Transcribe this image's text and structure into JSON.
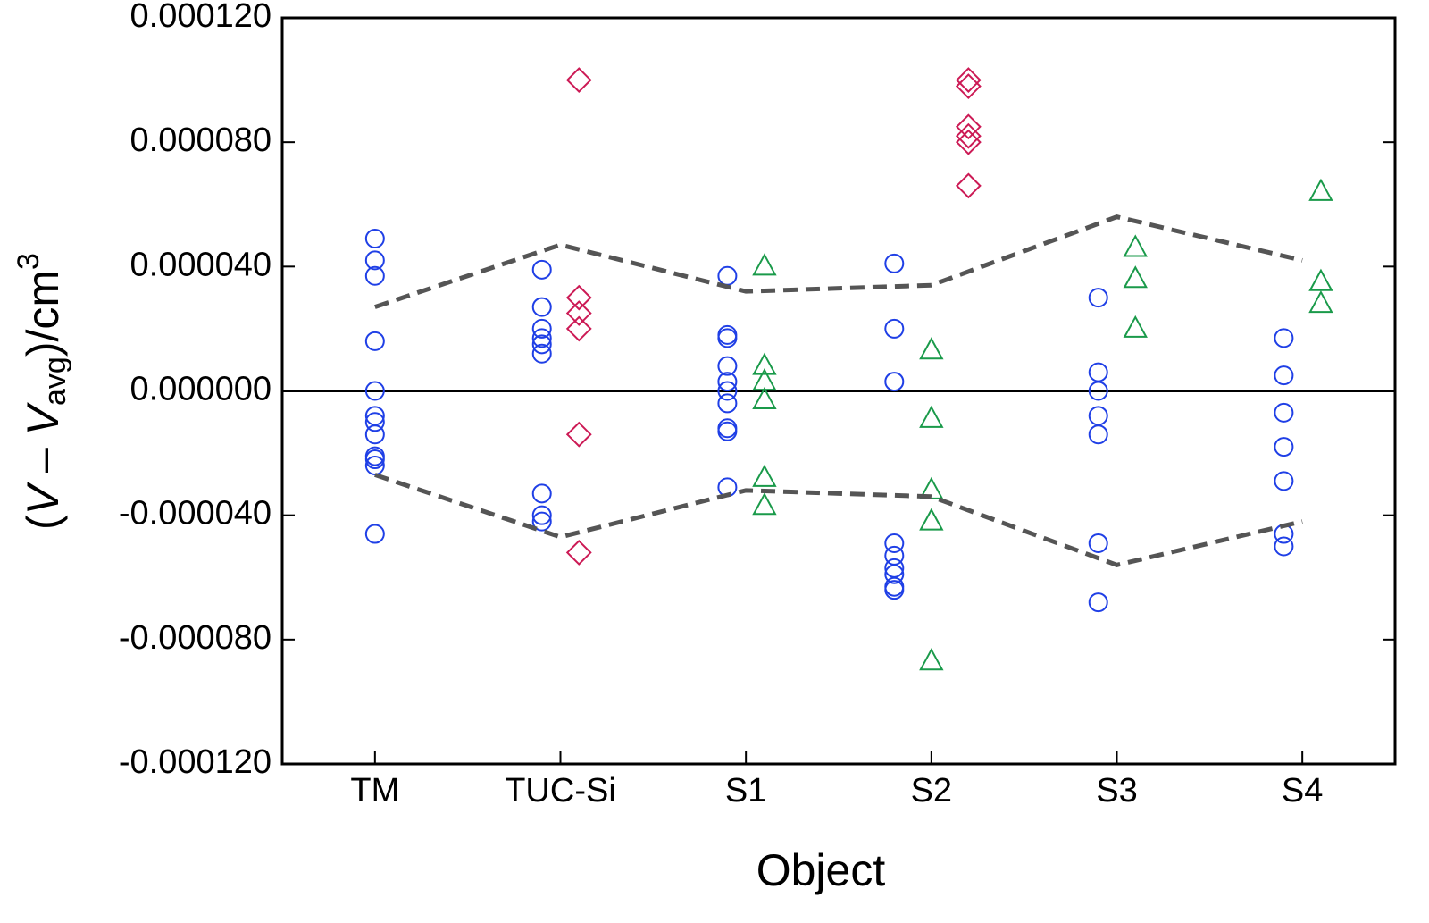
{
  "chart_data": {
    "type": "scatter",
    "x_label": "Object",
    "y_label": [
      "(",
      "V",
      " – ",
      "V",
      "avg",
      ")/cm",
      "3"
    ],
    "xlim": [
      -0.5,
      5.5
    ],
    "xticks": [
      {
        "value": 0,
        "label": "TM"
      },
      {
        "value": 1,
        "label": "TUC-Si"
      },
      {
        "value": 2,
        "label": "S1"
      },
      {
        "value": 3,
        "label": "S2"
      },
      {
        "value": 4,
        "label": "S3"
      },
      {
        "value": 5,
        "label": "S4"
      }
    ],
    "ylim": [
      -0.00012,
      0.00012
    ],
    "yticks": [
      {
        "value": -0.00012,
        "label": "-0.000120"
      },
      {
        "value": -8e-05,
        "label": "-0.000080"
      },
      {
        "value": -4e-05,
        "label": "-0.000040"
      },
      {
        "value": 0,
        "label": "0.000000"
      },
      {
        "value": 4e-05,
        "label": "0.000040"
      },
      {
        "value": 8e-05,
        "label": "0.000080"
      },
      {
        "value": 0.00012,
        "label": "0.000120"
      }
    ],
    "hline": 0,
    "series": [
      {
        "color": "#1f3fe6",
        "marker": "circle",
        "x": [
          0,
          0,
          0,
          0,
          0,
          0,
          0,
          0,
          0,
          0,
          0,
          0,
          0.9,
          0.9,
          0.9,
          0.9,
          0.9,
          0.9,
          0.9,
          0.9,
          0.9,
          1.9,
          1.9,
          1.9,
          1.9,
          1.9,
          1.9,
          1.9,
          1.9,
          1.9,
          1.9,
          2.8,
          2.8,
          2.8,
          2.8,
          2.8,
          2.8,
          2.8,
          2.8,
          2.8,
          3.9,
          3.9,
          3.9,
          3.9,
          3.9,
          3.9,
          3.9,
          4.9,
          4.9,
          4.9,
          4.9,
          4.9,
          4.9,
          4.9
        ],
        "values": [
          4.9e-05,
          4.2e-05,
          3.7e-05,
          1.6e-05,
          0,
          -8e-06,
          -1e-05,
          -1.4e-05,
          -2.1e-05,
          -2.2e-05,
          -2.4e-05,
          -4.6e-05,
          3.9e-05,
          2.7e-05,
          2e-05,
          1.7e-05,
          1.5e-05,
          1.2e-05,
          -3.3e-05,
          -4e-05,
          -4.2e-05,
          3.7e-05,
          1.8e-05,
          1.7e-05,
          8e-06,
          3e-06,
          0,
          -4e-06,
          -1.2e-05,
          -1.3e-05,
          -3.1e-05,
          4.1e-05,
          2e-05,
          3e-06,
          -4.9e-05,
          -5.3e-05,
          -5.7e-05,
          -5.9e-05,
          -6.3e-05,
          -6.4e-05,
          3e-05,
          6e-06,
          0,
          -8e-06,
          -1.4e-05,
          -4.9e-05,
          -6.8e-05,
          1.7e-05,
          5e-06,
          -7e-06,
          -1.8e-05,
          -2.9e-05,
          -4.6e-05,
          -5e-05
        ]
      },
      {
        "color": "#cc1a55",
        "marker": "diamond",
        "x": [
          1.1,
          1.1,
          1.1,
          1.1,
          1.1,
          1.1,
          3.2,
          3.2,
          3.2,
          3.2,
          3.2,
          3.2
        ],
        "values": [
          0.0001,
          3e-05,
          2.5e-05,
          2e-05,
          -1.4e-05,
          -5.2e-05,
          0.0001,
          9.8e-05,
          8.5e-05,
          8.2e-05,
          8e-05,
          6.6e-05
        ]
      },
      {
        "color": "#1a9a4a",
        "marker": "triangle",
        "x": [
          2.1,
          2.1,
          2.1,
          2.1,
          2.1,
          2.1,
          3,
          3,
          3,
          3,
          3,
          4.1,
          4.1,
          4.1,
          5.1,
          5.1,
          5.1
        ],
        "values": [
          4e-05,
          8e-06,
          3e-06,
          -3e-06,
          -2.8e-05,
          -3.7e-05,
          1.3e-05,
          -9e-06,
          -3.2e-05,
          -4.2e-05,
          -8.7e-05,
          4.6e-05,
          3.6e-05,
          2e-05,
          6.4e-05,
          3.5e-05,
          2.8e-05
        ]
      },
      {
        "color": "#555555",
        "marker": "none",
        "linestyle": "dashed",
        "x": [
          0,
          1,
          2,
          3,
          4,
          5
        ],
        "values": [
          2.7e-05,
          4.7e-05,
          3.2e-05,
          3.4e-05,
          5.6e-05,
          4.2e-05
        ]
      },
      {
        "color": "#555555",
        "marker": "none",
        "linestyle": "dashed",
        "x": [
          0,
          1,
          2,
          3,
          4,
          5
        ],
        "values": [
          -2.7e-05,
          -4.7e-05,
          -3.2e-05,
          -3.4e-05,
          -5.6e-05,
          -4.2e-05
        ]
      }
    ]
  }
}
